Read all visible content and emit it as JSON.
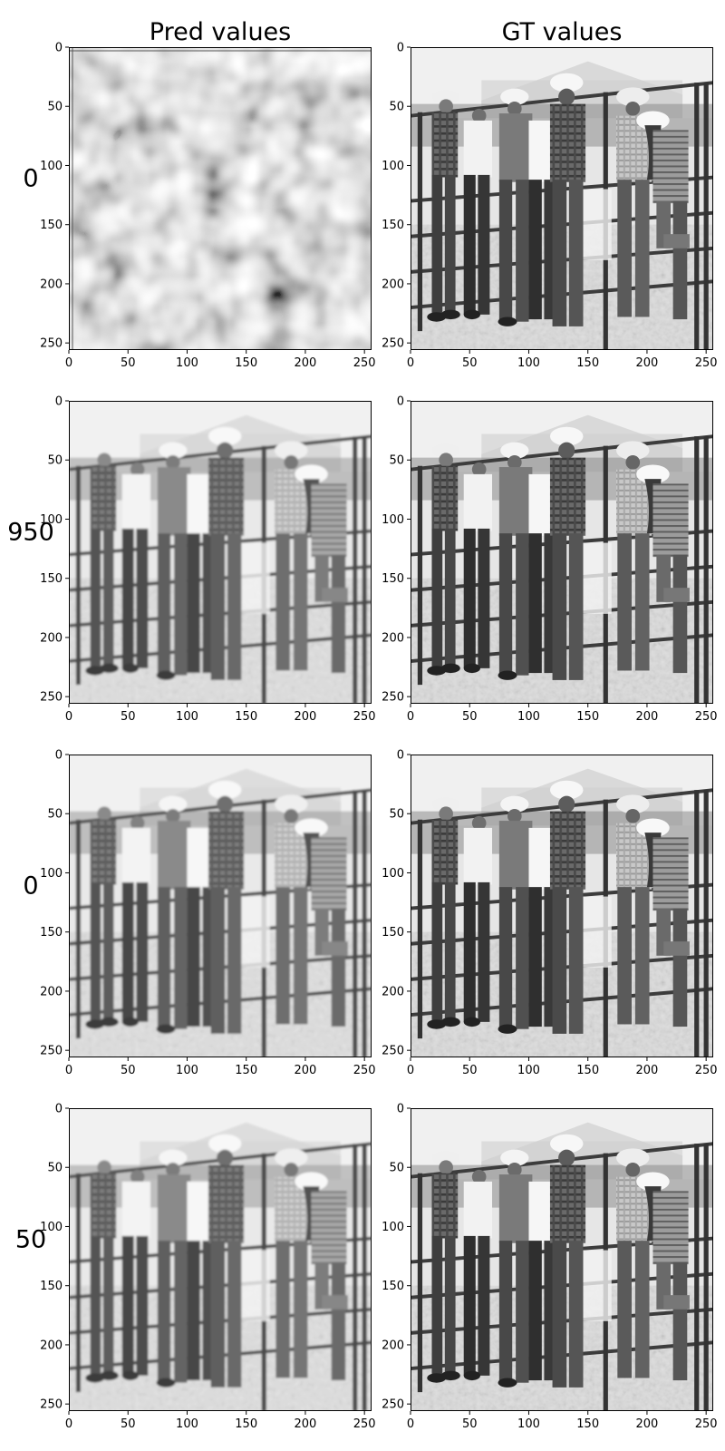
{
  "figure": {
    "column_titles": [
      "Pred values",
      "GT values"
    ],
    "row_labels": [
      "0",
      "950",
      "0",
      "50"
    ]
  },
  "chart_data": {
    "type": "image-grid",
    "rows": 4,
    "cols": 2,
    "xlim": [
      0,
      256
    ],
    "ylim": [
      256,
      0
    ],
    "xticks": [
      0,
      50,
      100,
      150,
      200,
      250
    ],
    "yticks": [
      0,
      50,
      100,
      150,
      200,
      250
    ],
    "panels": [
      {
        "row": 0,
        "col": 0,
        "content": "noise"
      },
      {
        "row": 0,
        "col": 1,
        "content": "photo"
      },
      {
        "row": 1,
        "col": 0,
        "content": "photo-soft"
      },
      {
        "row": 1,
        "col": 1,
        "content": "photo"
      },
      {
        "row": 2,
        "col": 0,
        "content": "photo-soft"
      },
      {
        "row": 2,
        "col": 1,
        "content": "photo"
      },
      {
        "row": 3,
        "col": 0,
        "content": "photo-soft"
      },
      {
        "row": 3,
        "col": 1,
        "content": "photo"
      }
    ],
    "colormap": "gray"
  }
}
